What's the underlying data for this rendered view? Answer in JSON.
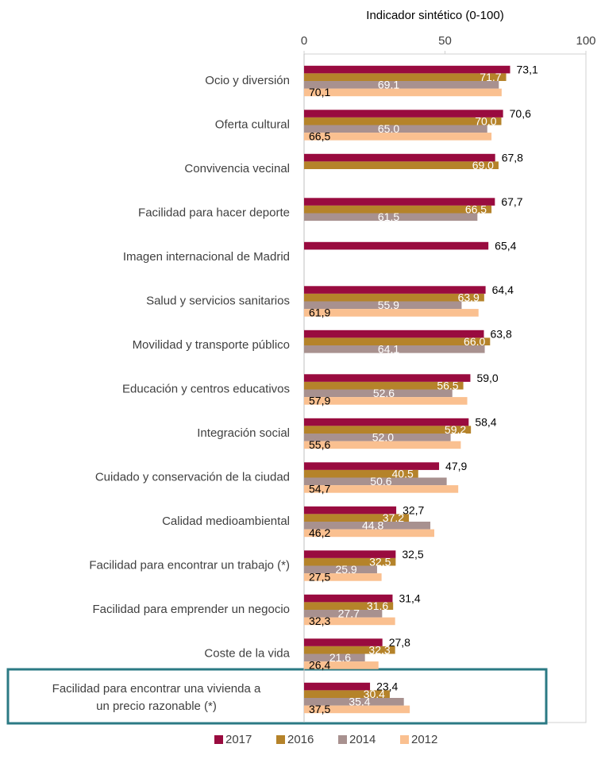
{
  "chart_data": {
    "type": "bar",
    "orientation": "horizontal",
    "x_label": "Indicador sintético (0-100)",
    "categories": [
      "Ocio y diversión",
      "Oferta cultural",
      "Convivencia vecinal",
      "Facilidad para hacer deporte",
      "Imagen internacional de Madrid",
      "Salud y servicios sanitarios",
      "Movilidad y transporte público",
      "Educación y centros educativos",
      "Integración social",
      "Cuidado y conservación de la ciudad",
      "Calidad medioambiental",
      "Facilidad para encontrar un trabajo (*)",
      "Facilidad para emprender un negocio",
      "Coste de la vida",
      "Facilidad para encontrar una vivienda a\nun precio razonable (*)"
    ],
    "series": [
      {
        "name": "2017",
        "color": "#990b3f",
        "values": [
          73.1,
          70.6,
          67.8,
          67.7,
          65.4,
          64.4,
          63.8,
          59.0,
          58.4,
          47.9,
          32.7,
          32.5,
          31.4,
          27.8,
          23.4
        ],
        "value_labels": [
          "73,1",
          "70,6",
          "67,8",
          "67,7",
          "65,4",
          "64,4",
          "63,8",
          "59,0",
          "58,4",
          "47,9",
          "32,7",
          "32,5",
          "31,4",
          "27,8",
          "23,4"
        ]
      },
      {
        "name": "2016",
        "color": "#b5832a",
        "values": [
          71.7,
          70.0,
          69.0,
          66.5,
          null,
          63.9,
          66.0,
          56.5,
          59.2,
          40.5,
          37.2,
          32.5,
          31.6,
          32.3,
          30.4
        ],
        "value_labels": [
          "71,7",
          "70,0",
          "69,0",
          "66,5",
          null,
          "63,9",
          "66,0",
          "56,5",
          "59,2",
          "40,5",
          "37,2",
          "32,5",
          "31,6",
          "32,3",
          "30,4"
        ]
      },
      {
        "name": "2014",
        "color": "#a8918f",
        "values": [
          69.1,
          65.0,
          null,
          61.5,
          null,
          55.9,
          64.1,
          52.6,
          52.0,
          50.6,
          44.8,
          25.9,
          27.7,
          21.6,
          35.4
        ],
        "value_labels": [
          "69,1",
          "65,0",
          null,
          "61,5",
          null,
          "55,9",
          "64,1",
          "52,6",
          "52,0",
          "50,6",
          "44,8",
          "25,9",
          "27,7",
          "21,6",
          "35,4"
        ]
      },
      {
        "name": "2012",
        "color": "#fac090",
        "values": [
          70.1,
          66.5,
          null,
          null,
          null,
          61.9,
          null,
          57.9,
          55.6,
          54.7,
          46.2,
          27.5,
          32.3,
          26.4,
          37.5
        ],
        "value_labels": [
          "70,1",
          "66,5",
          null,
          null,
          null,
          "61,9",
          null,
          "57,9",
          "55,6",
          "54,7",
          "46,2",
          "27,5",
          "32,3",
          "26,4",
          "37,5"
        ]
      }
    ],
    "xlim": [
      0,
      100
    ],
    "xticks": [
      0,
      50,
      100
    ],
    "legend": "bottom"
  }
}
